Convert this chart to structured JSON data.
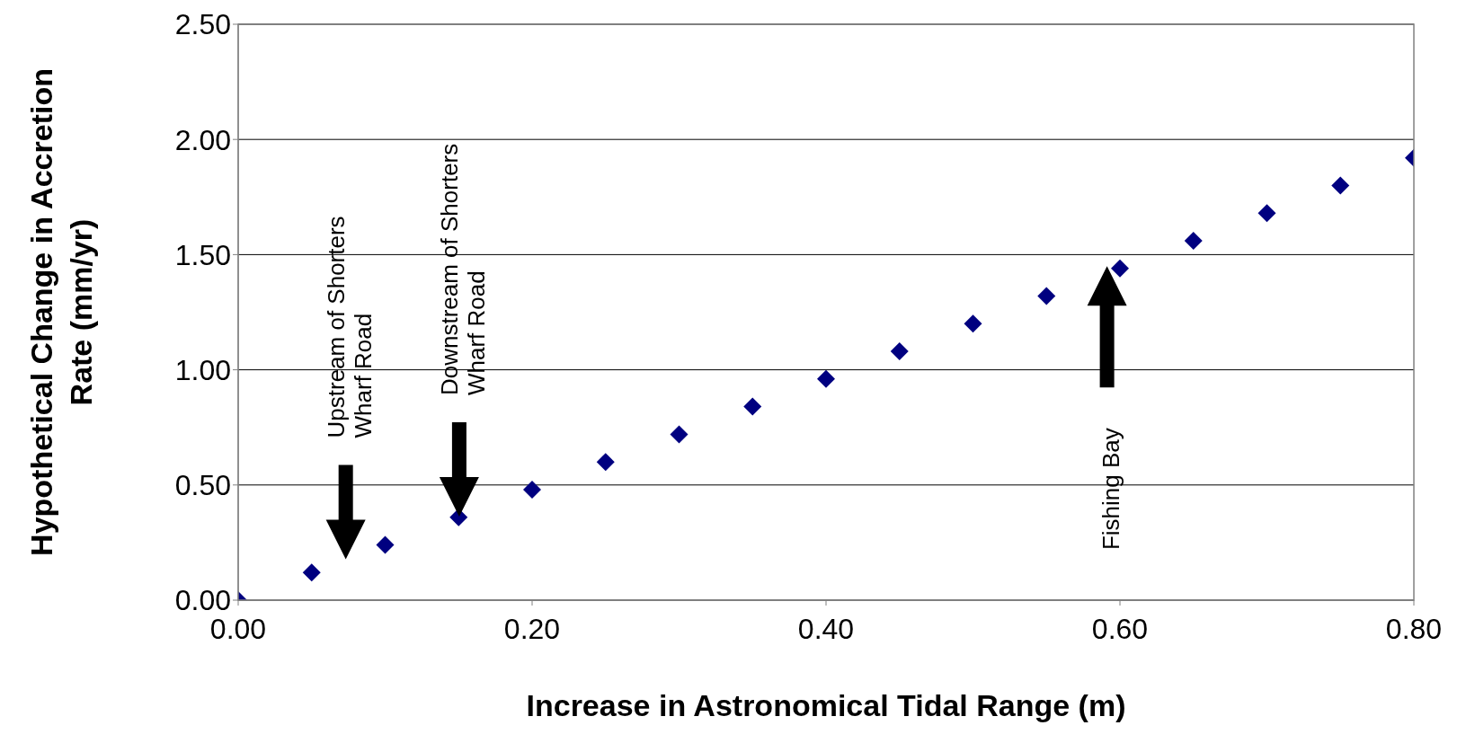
{
  "chart_data": {
    "type": "scatter",
    "xlabel": "Increase in Astronomical Tidal Range (m)",
    "ylabel": "Hypothetical Change in Accretion Rate (mm/yr)",
    "x": [
      0,
      0.05,
      0.1,
      0.15,
      0.2,
      0.25,
      0.3,
      0.35,
      0.4,
      0.45,
      0.5,
      0.55,
      0.6,
      0.65,
      0.7,
      0.75,
      0.8
    ],
    "series": [
      {
        "color": "#000080",
        "values": [
          0,
          0.12,
          0.24,
          0.36,
          0.48,
          0.6,
          0.72,
          0.84,
          0.96,
          1.08,
          1.2,
          1.32,
          1.44,
          1.56,
          1.68,
          1.8,
          1.92
        ]
      }
    ],
    "xlim": [
      0,
      0.8
    ],
    "ylim": [
      0,
      2.5
    ],
    "xticks": [
      {
        "value": 0,
        "label": "0.00"
      },
      {
        "value": 0.2,
        "label": "0.20"
      },
      {
        "value": 0.4,
        "label": "0.40"
      },
      {
        "value": 0.6,
        "label": "0.60"
      },
      {
        "value": 0.8,
        "label": "0.80"
      }
    ],
    "yticks": [
      {
        "value": 0,
        "label": "0.00"
      },
      {
        "value": 0.5,
        "label": "0.50"
      },
      {
        "value": 1,
        "label": "1.00"
      },
      {
        "value": 1.5,
        "label": "1.50"
      },
      {
        "value": 2,
        "label": "2.00"
      },
      {
        "value": 2.5,
        "label": "2.50"
      }
    ],
    "grid": "y",
    "marker": "diamond",
    "legend": false,
    "annotations": [
      "Upstream of Shorters Wharf Road",
      "Downstream of Shorters Wharf Road",
      "Fishing Bay"
    ]
  }
}
